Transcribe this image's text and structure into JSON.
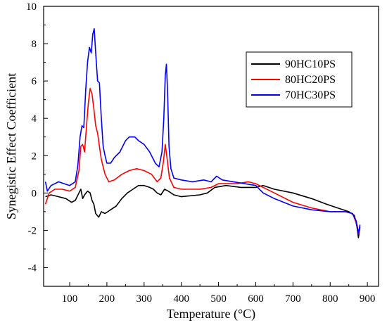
{
  "chart_data": {
    "type": "line",
    "xlabel": "Temperature (°C)",
    "ylabel": "Synegistic Effect Coefficient",
    "xlim": [
      30,
      930
    ],
    "ylim": [
      -5,
      10
    ],
    "xticks": [
      100,
      200,
      300,
      400,
      500,
      600,
      700,
      800,
      900
    ],
    "yticks": [
      -4,
      -2,
      0,
      2,
      4,
      6,
      8,
      10
    ],
    "legend_position": "upper-right",
    "series": [
      {
        "name": "90HC10PS",
        "color": "#000000",
        "points": [
          [
            35,
            -0.2
          ],
          [
            50,
            -0.1
          ],
          [
            70,
            -0.2
          ],
          [
            90,
            -0.3
          ],
          [
            105,
            -0.5
          ],
          [
            115,
            -0.4
          ],
          [
            125,
            0.0
          ],
          [
            130,
            0.2
          ],
          [
            135,
            -0.3
          ],
          [
            140,
            -0.1
          ],
          [
            148,
            0.1
          ],
          [
            155,
            0.0
          ],
          [
            160,
            -0.4
          ],
          [
            165,
            -0.6
          ],
          [
            170,
            -1.1
          ],
          [
            178,
            -1.3
          ],
          [
            185,
            -1.0
          ],
          [
            195,
            -1.1
          ],
          [
            210,
            -0.9
          ],
          [
            225,
            -0.7
          ],
          [
            240,
            -0.3
          ],
          [
            255,
            0.0
          ],
          [
            270,
            0.2
          ],
          [
            285,
            0.4
          ],
          [
            300,
            0.4
          ],
          [
            315,
            0.3
          ],
          [
            325,
            0.2
          ],
          [
            335,
            0.0
          ],
          [
            345,
            -0.1
          ],
          [
            355,
            0.2
          ],
          [
            365,
            0.1
          ],
          [
            380,
            -0.1
          ],
          [
            400,
            -0.2
          ],
          [
            450,
            -0.1
          ],
          [
            470,
            0.0
          ],
          [
            490,
            0.3
          ],
          [
            520,
            0.4
          ],
          [
            560,
            0.3
          ],
          [
            600,
            0.3
          ],
          [
            620,
            0.4
          ],
          [
            650,
            0.2
          ],
          [
            700,
            0.0
          ],
          [
            750,
            -0.3
          ],
          [
            790,
            -0.6
          ],
          [
            820,
            -0.8
          ],
          [
            850,
            -1.0
          ],
          [
            865,
            -1.2
          ],
          [
            872,
            -1.8
          ],
          [
            876,
            -2.4
          ],
          [
            880,
            -1.8
          ]
        ]
      },
      {
        "name": "80HC20PS",
        "color": "#ff0000",
        "points": [
          [
            35,
            -0.6
          ],
          [
            45,
            0.0
          ],
          [
            60,
            0.2
          ],
          [
            80,
            0.2
          ],
          [
            100,
            0.1
          ],
          [
            115,
            0.3
          ],
          [
            125,
            1.2
          ],
          [
            130,
            2.5
          ],
          [
            135,
            2.6
          ],
          [
            140,
            2.2
          ],
          [
            145,
            3.5
          ],
          [
            150,
            4.8
          ],
          [
            155,
            5.6
          ],
          [
            160,
            5.3
          ],
          [
            165,
            4.5
          ],
          [
            170,
            3.6
          ],
          [
            175,
            3.2
          ],
          [
            180,
            2.5
          ],
          [
            185,
            1.8
          ],
          [
            195,
            1.0
          ],
          [
            205,
            0.6
          ],
          [
            220,
            0.7
          ],
          [
            240,
            1.0
          ],
          [
            260,
            1.2
          ],
          [
            280,
            1.3
          ],
          [
            300,
            1.2
          ],
          [
            320,
            1.0
          ],
          [
            335,
            0.6
          ],
          [
            345,
            0.8
          ],
          [
            352,
            1.7
          ],
          [
            357,
            2.6
          ],
          [
            362,
            1.8
          ],
          [
            368,
            0.8
          ],
          [
            380,
            0.3
          ],
          [
            400,
            0.2
          ],
          [
            450,
            0.2
          ],
          [
            480,
            0.3
          ],
          [
            500,
            0.5
          ],
          [
            550,
            0.5
          ],
          [
            580,
            0.6
          ],
          [
            600,
            0.5
          ],
          [
            650,
            0.0
          ],
          [
            700,
            -0.5
          ],
          [
            750,
            -0.8
          ],
          [
            800,
            -1.0
          ],
          [
            840,
            -1.0
          ],
          [
            860,
            -1.1
          ],
          [
            872,
            -1.7
          ],
          [
            877,
            -2.2
          ],
          [
            880,
            -1.9
          ]
        ]
      },
      {
        "name": "70HC30PS",
        "color": "#0000ff",
        "points": [
          [
            35,
            0.6
          ],
          [
            40,
            0.1
          ],
          [
            50,
            0.4
          ],
          [
            60,
            0.5
          ],
          [
            70,
            0.6
          ],
          [
            85,
            0.5
          ],
          [
            100,
            0.4
          ],
          [
            115,
            0.6
          ],
          [
            122,
            1.5
          ],
          [
            128,
            3.0
          ],
          [
            133,
            3.6
          ],
          [
            138,
            3.5
          ],
          [
            143,
            5.5
          ],
          [
            148,
            7.0
          ],
          [
            153,
            7.8
          ],
          [
            158,
            7.5
          ],
          [
            162,
            8.5
          ],
          [
            166,
            8.8
          ],
          [
            170,
            7.5
          ],
          [
            175,
            6.0
          ],
          [
            180,
            5.9
          ],
          [
            185,
            4.0
          ],
          [
            190,
            2.5
          ],
          [
            195,
            2.0
          ],
          [
            200,
            1.6
          ],
          [
            210,
            1.6
          ],
          [
            220,
            1.9
          ],
          [
            235,
            2.2
          ],
          [
            250,
            2.8
          ],
          [
            260,
            3.0
          ],
          [
            275,
            3.0
          ],
          [
            285,
            2.8
          ],
          [
            300,
            2.6
          ],
          [
            315,
            2.2
          ],
          [
            330,
            1.6
          ],
          [
            340,
            1.4
          ],
          [
            348,
            2.2
          ],
          [
            353,
            4.0
          ],
          [
            357,
            6.3
          ],
          [
            360,
            6.9
          ],
          [
            363,
            5.5
          ],
          [
            367,
            2.5
          ],
          [
            372,
            1.3
          ],
          [
            380,
            0.8
          ],
          [
            400,
            0.7
          ],
          [
            430,
            0.6
          ],
          [
            460,
            0.7
          ],
          [
            480,
            0.6
          ],
          [
            495,
            0.9
          ],
          [
            510,
            0.7
          ],
          [
            540,
            0.6
          ],
          [
            570,
            0.5
          ],
          [
            600,
            0.4
          ],
          [
            620,
            0.0
          ],
          [
            650,
            -0.3
          ],
          [
            700,
            -0.7
          ],
          [
            750,
            -0.9
          ],
          [
            800,
            -1.0
          ],
          [
            840,
            -1.0
          ],
          [
            860,
            -1.1
          ],
          [
            870,
            -1.5
          ],
          [
            876,
            -2.2
          ],
          [
            880,
            -1.7
          ]
        ]
      }
    ]
  }
}
